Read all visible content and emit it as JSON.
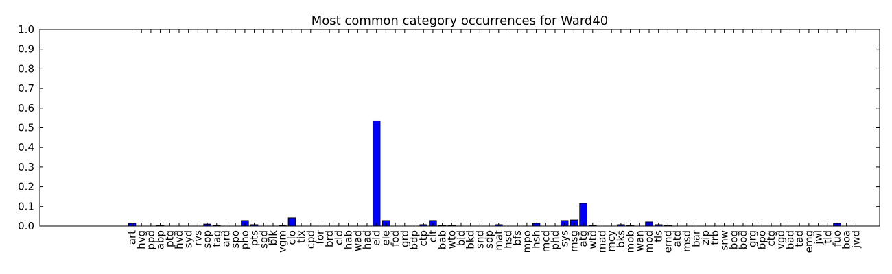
{
  "chart_data": {
    "type": "bar",
    "title": "Most common category occurrences for Ward40",
    "xlabel": "",
    "ylabel": "",
    "ylim": [
      0,
      1.0
    ],
    "yticks": [
      "0.0",
      "0.1",
      "0.2",
      "0.3",
      "0.4",
      "0.5",
      "0.6",
      "0.7",
      "0.8",
      "0.9",
      "1.0"
    ],
    "grid": false,
    "legend": "none",
    "bar_color": "#0000ff",
    "categories": [
      "art",
      "hvg",
      "ppd",
      "abp",
      "ptg",
      "hvd",
      "syd",
      "rvs",
      "sop",
      "tag",
      "ard",
      "spo",
      "pho",
      "pts",
      "sgd",
      "blk",
      "vgm",
      "clo",
      "tix",
      "cpd",
      "for",
      "brd",
      "cld",
      "hab",
      "wad",
      "had",
      "eld",
      "ele",
      "fod",
      "grd",
      "bdp",
      "ctp",
      "clt",
      "bab",
      "wto",
      "bid",
      "bkd",
      "snd",
      "sdp",
      "mat",
      "hsd",
      "bfs",
      "mpo",
      "hsh",
      "mcd",
      "phd",
      "sys",
      "msg",
      "atg",
      "wtd",
      "mad",
      "mcy",
      "bks",
      "mob",
      "wan",
      "mod",
      "tls",
      "emd",
      "atd",
      "msd",
      "bar",
      "zip",
      "trb",
      "snw",
      "bog",
      "bod",
      "grg",
      "bpo",
      "ctg",
      "vgd",
      "bad",
      "tad",
      "emg",
      "jwl",
      "tld",
      "fuo",
      "boa",
      "jwd"
    ],
    "values": [
      0.014,
      0,
      0,
      0.003,
      0,
      0,
      0,
      0,
      0.01,
      0.003,
      0,
      0,
      0.028,
      0.007,
      0,
      0,
      0.003,
      0.042,
      0,
      0,
      0,
      0,
      0,
      0,
      0,
      0,
      0.535,
      0.028,
      0,
      0,
      0,
      0.007,
      0.028,
      0.003,
      0.003,
      0,
      0,
      0,
      0,
      0.007,
      0,
      0,
      0,
      0.014,
      0,
      0,
      0.028,
      0.031,
      0.115,
      0.003,
      0,
      0,
      0.007,
      0.003,
      0,
      0.021,
      0.007,
      0.003,
      0,
      0,
      0,
      0,
      0,
      0,
      0,
      0,
      0,
      0,
      0,
      0,
      0,
      0,
      0,
      0,
      0,
      0.014,
      0,
      0
    ]
  }
}
